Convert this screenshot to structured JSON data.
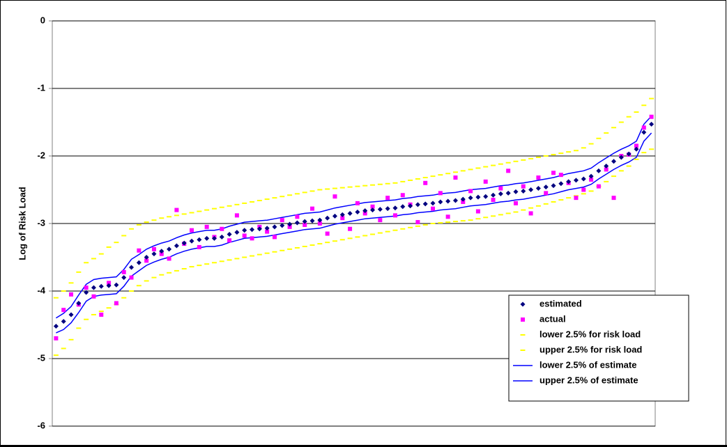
{
  "chart_data": {
    "type": "scatter-line",
    "ylabel": "Log of Risk Load",
    "ylim": [
      -6,
      0
    ],
    "yticks": [
      0,
      -1,
      -2,
      -3,
      -4,
      -5,
      -6
    ],
    "grid": true,
    "legend": "lower right",
    "series": [
      {
        "name": "estimated",
        "color": "#000080",
        "marker": "diamond",
        "values": [
          -4.52,
          -4.45,
          -4.35,
          -4.18,
          -4.02,
          -3.95,
          -3.93,
          -3.92,
          -3.91,
          -3.8,
          -3.65,
          -3.58,
          -3.5,
          -3.45,
          -3.41,
          -3.38,
          -3.33,
          -3.29,
          -3.26,
          -3.24,
          -3.22,
          -3.22,
          -3.2,
          -3.16,
          -3.13,
          -3.1,
          -3.09,
          -3.08,
          -3.07,
          -3.05,
          -3.03,
          -3.01,
          -2.99,
          -2.97,
          -2.96,
          -2.95,
          -2.92,
          -2.89,
          -2.87,
          -2.85,
          -2.83,
          -2.81,
          -2.8,
          -2.79,
          -2.78,
          -2.77,
          -2.75,
          -2.74,
          -2.72,
          -2.71,
          -2.7,
          -2.68,
          -2.67,
          -2.66,
          -2.64,
          -2.62,
          -2.61,
          -2.6,
          -2.58,
          -2.56,
          -2.55,
          -2.53,
          -2.52,
          -2.5,
          -2.48,
          -2.46,
          -2.44,
          -2.41,
          -2.38,
          -2.36,
          -2.34,
          -2.3,
          -2.22,
          -2.15,
          -2.08,
          -2.02,
          -1.97,
          -1.9,
          -1.65,
          -1.53
        ]
      },
      {
        "name": "actual",
        "color": "#ff00ff",
        "marker": "square",
        "values": [
          -4.7,
          -4.28,
          -4.05,
          -4.2,
          -3.95,
          -4.08,
          -4.35,
          -3.88,
          -4.18,
          -3.72,
          -3.8,
          -3.4,
          -3.55,
          -3.38,
          -3.45,
          -3.52,
          -2.8,
          -3.3,
          -3.1,
          -3.35,
          -3.05,
          -3.2,
          -3.08,
          -3.25,
          -2.88,
          -3.18,
          -3.22,
          -3.05,
          -3.12,
          -3.2,
          -2.95,
          -3.05,
          -2.9,
          -3.02,
          -2.78,
          -3.0,
          -3.15,
          -2.6,
          -2.92,
          -3.08,
          -2.7,
          -2.85,
          -2.75,
          -2.95,
          -2.62,
          -2.88,
          -2.58,
          -2.72,
          -2.98,
          -2.4,
          -2.78,
          -2.55,
          -2.9,
          -2.32,
          -2.68,
          -2.52,
          -2.82,
          -2.38,
          -2.65,
          -2.48,
          -2.22,
          -2.7,
          -2.45,
          -2.85,
          -2.32,
          -2.55,
          -2.25,
          -2.28,
          -2.4,
          -2.62,
          -2.5,
          -2.35,
          -2.45,
          -2.2,
          -2.62,
          -2.0,
          -1.98,
          -1.85,
          -1.58,
          -1.42
        ]
      },
      {
        "name": "lower 2.5% for risk load",
        "color": "#ffff00",
        "marker": "dash",
        "values": [
          -4.95,
          -4.85,
          -4.72,
          -4.55,
          -4.42,
          -4.35,
          -4.3,
          -4.25,
          -4.2,
          -4.1,
          -4.0,
          -3.92,
          -3.85,
          -3.8,
          -3.76,
          -3.73,
          -3.7,
          -3.67,
          -3.64,
          -3.62,
          -3.6,
          -3.58,
          -3.56,
          -3.54,
          -3.52,
          -3.5,
          -3.48,
          -3.46,
          -3.44,
          -3.42,
          -3.4,
          -3.38,
          -3.36,
          -3.34,
          -3.32,
          -3.3,
          -3.28,
          -3.26,
          -3.24,
          -3.22,
          -3.2,
          -3.18,
          -3.16,
          -3.14,
          -3.12,
          -3.1,
          -3.08,
          -3.06,
          -3.04,
          -3.02,
          -3.0,
          -2.99,
          -2.98,
          -2.97,
          -2.96,
          -2.95,
          -2.93,
          -2.91,
          -2.89,
          -2.87,
          -2.85,
          -2.83,
          -2.8,
          -2.77,
          -2.74,
          -2.71,
          -2.68,
          -2.65,
          -2.62,
          -2.59,
          -2.56,
          -2.52,
          -2.45,
          -2.38,
          -2.3,
          -2.22,
          -2.15,
          -2.05,
          -1.95,
          -1.9
        ]
      },
      {
        "name": "upper 2.5% for risk load",
        "color": "#ffff00",
        "marker": "dash",
        "values": [
          -4.1,
          -4.0,
          -3.88,
          -3.72,
          -3.58,
          -3.52,
          -3.45,
          -3.35,
          -3.28,
          -3.18,
          -3.08,
          -3.02,
          -2.98,
          -2.95,
          -2.92,
          -2.9,
          -2.88,
          -2.86,
          -2.84,
          -2.82,
          -2.8,
          -2.78,
          -2.76,
          -2.74,
          -2.72,
          -2.7,
          -2.68,
          -2.66,
          -2.64,
          -2.62,
          -2.6,
          -2.58,
          -2.56,
          -2.54,
          -2.52,
          -2.5,
          -2.49,
          -2.48,
          -2.47,
          -2.46,
          -2.45,
          -2.44,
          -2.43,
          -2.42,
          -2.41,
          -2.4,
          -2.38,
          -2.36,
          -2.34,
          -2.32,
          -2.3,
          -2.28,
          -2.26,
          -2.24,
          -2.22,
          -2.2,
          -2.18,
          -2.16,
          -2.14,
          -2.12,
          -2.1,
          -2.08,
          -2.06,
          -2.04,
          -2.02,
          -2.0,
          -1.98,
          -1.96,
          -1.94,
          -1.92,
          -1.88,
          -1.82,
          -1.74,
          -1.66,
          -1.58,
          -1.5,
          -1.42,
          -1.35,
          -1.25,
          -1.15
        ]
      },
      {
        "name": "lower 2.5% of estimate",
        "color": "#0000ff",
        "marker": "line",
        "values": [
          -4.62,
          -4.57,
          -4.47,
          -4.32,
          -4.15,
          -4.08,
          -4.06,
          -4.05,
          -4.04,
          -3.93,
          -3.78,
          -3.7,
          -3.62,
          -3.57,
          -3.53,
          -3.5,
          -3.45,
          -3.41,
          -3.38,
          -3.36,
          -3.34,
          -3.34,
          -3.32,
          -3.28,
          -3.25,
          -3.22,
          -3.21,
          -3.2,
          -3.19,
          -3.17,
          -3.15,
          -3.13,
          -3.11,
          -3.09,
          -3.08,
          -3.07,
          -3.04,
          -3.01,
          -2.99,
          -2.97,
          -2.95,
          -2.93,
          -2.92,
          -2.91,
          -2.9,
          -2.89,
          -2.87,
          -2.86,
          -2.84,
          -2.83,
          -2.82,
          -2.8,
          -2.79,
          -2.78,
          -2.76,
          -2.74,
          -2.73,
          -2.72,
          -2.7,
          -2.68,
          -2.67,
          -2.65,
          -2.64,
          -2.62,
          -2.6,
          -2.58,
          -2.56,
          -2.53,
          -2.5,
          -2.48,
          -2.46,
          -2.42,
          -2.34,
          -2.27,
          -2.2,
          -2.14,
          -2.09,
          -2.02,
          -1.78,
          -1.66
        ]
      },
      {
        "name": "upper 2.5% of estimate",
        "color": "#0000ff",
        "marker": "line",
        "values": [
          -4.4,
          -4.33,
          -4.23,
          -4.06,
          -3.9,
          -3.83,
          -3.81,
          -3.8,
          -3.79,
          -3.68,
          -3.53,
          -3.46,
          -3.38,
          -3.33,
          -3.29,
          -3.26,
          -3.21,
          -3.17,
          -3.14,
          -3.12,
          -3.1,
          -3.1,
          -3.08,
          -3.04,
          -3.01,
          -2.98,
          -2.97,
          -2.96,
          -2.95,
          -2.93,
          -2.91,
          -2.89,
          -2.87,
          -2.85,
          -2.84,
          -2.83,
          -2.8,
          -2.77,
          -2.75,
          -2.73,
          -2.71,
          -2.69,
          -2.68,
          -2.67,
          -2.66,
          -2.65,
          -2.63,
          -2.62,
          -2.6,
          -2.59,
          -2.58,
          -2.56,
          -2.55,
          -2.54,
          -2.52,
          -2.5,
          -2.49,
          -2.48,
          -2.46,
          -2.44,
          -2.43,
          -2.41,
          -2.4,
          -2.38,
          -2.36,
          -2.34,
          -2.32,
          -2.29,
          -2.26,
          -2.24,
          -2.22,
          -2.18,
          -2.1,
          -2.03,
          -1.96,
          -1.9,
          -1.85,
          -1.78,
          -1.53,
          -1.41
        ]
      }
    ]
  }
}
